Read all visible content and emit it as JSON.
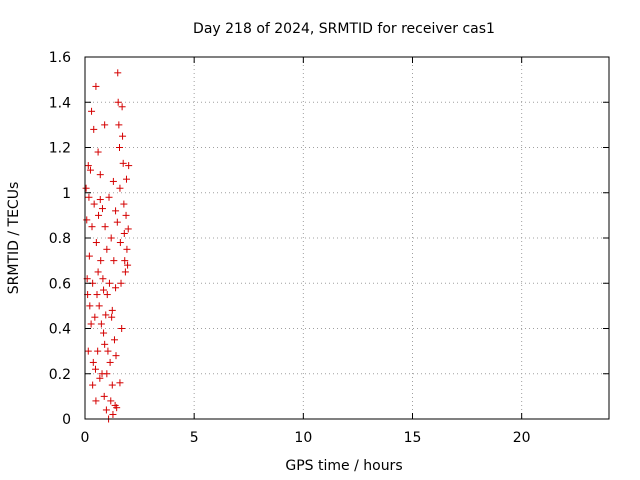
{
  "chart_data": {
    "type": "scatter",
    "title": "Day 218 of 2024, SRMTID for receiver cas1",
    "xlabel": "GPS time / hours",
    "ylabel": "SRMTID / TECUs",
    "xlim": [
      0,
      24
    ],
    "ylim": [
      0,
      1.6
    ],
    "x_ticks": [
      0,
      5,
      10,
      15,
      20
    ],
    "y_ticks": [
      0,
      0.2,
      0.4,
      0.6,
      0.8,
      1.0,
      1.2,
      1.4,
      1.6
    ],
    "x_tick_labels": [
      "0",
      "5",
      "10",
      "15",
      "20"
    ],
    "y_tick_labels": [
      "0",
      "0.2",
      "0.4",
      "0.6",
      "0.8",
      "1",
      "1.2",
      "1.4",
      "1.6"
    ],
    "grid": true,
    "marker": "+",
    "color": "#d40000",
    "series": [
      {
        "name": "cas1",
        "points": [
          [
            0.05,
            1.02
          ],
          [
            0.08,
            0.88
          ],
          [
            0.1,
            0.62
          ],
          [
            0.12,
            0.55
          ],
          [
            0.15,
            1.12
          ],
          [
            0.18,
            0.98
          ],
          [
            0.2,
            0.72
          ],
          [
            0.22,
            0.5
          ],
          [
            0.25,
            1.1
          ],
          [
            0.28,
            0.42
          ],
          [
            0.3,
            1.36
          ],
          [
            0.32,
            0.85
          ],
          [
            0.35,
            0.6
          ],
          [
            0.38,
            0.25
          ],
          [
            0.4,
            1.28
          ],
          [
            0.42,
            0.95
          ],
          [
            0.45,
            0.45
          ],
          [
            0.48,
            0.22
          ],
          [
            0.5,
            1.47
          ],
          [
            0.52,
            0.78
          ],
          [
            0.55,
            0.55
          ],
          [
            0.58,
            0.3
          ],
          [
            0.6,
            1.18
          ],
          [
            0.62,
            0.9
          ],
          [
            0.65,
            0.5
          ],
          [
            0.68,
            0.18
          ],
          [
            0.7,
            1.08
          ],
          [
            0.72,
            0.7
          ],
          [
            0.75,
            0.42
          ],
          [
            0.78,
            0.2
          ],
          [
            0.8,
            0.93
          ],
          [
            0.82,
            0.62
          ],
          [
            0.85,
            0.38
          ],
          [
            0.88,
            0.1
          ],
          [
            0.9,
            1.3
          ],
          [
            0.92,
            0.85
          ],
          [
            0.95,
            0.46
          ],
          [
            0.98,
            0.04
          ],
          [
            1.0,
            0.75
          ],
          [
            1.02,
            0.55
          ],
          [
            1.05,
            0.3
          ],
          [
            1.08,
            0.0
          ],
          [
            1.1,
            0.98
          ],
          [
            1.12,
            0.6
          ],
          [
            1.15,
            0.25
          ],
          [
            1.18,
            0.08
          ],
          [
            1.2,
            0.8
          ],
          [
            1.22,
            0.45
          ],
          [
            1.25,
            0.15
          ],
          [
            1.28,
            0.02
          ],
          [
            1.3,
            1.05
          ],
          [
            1.32,
            0.7
          ],
          [
            1.35,
            0.35
          ],
          [
            1.38,
            0.06
          ],
          [
            1.4,
            0.58
          ],
          [
            1.42,
            0.28
          ],
          [
            1.45,
            0.05
          ],
          [
            1.48,
            0.87
          ],
          [
            1.5,
            1.53
          ],
          [
            1.52,
            1.4
          ],
          [
            1.55,
            1.3
          ],
          [
            1.58,
            1.2
          ],
          [
            1.6,
            1.02
          ],
          [
            1.62,
            0.78
          ],
          [
            1.65,
            0.6
          ],
          [
            1.68,
            0.4
          ],
          [
            1.7,
            1.38
          ],
          [
            1.72,
            1.25
          ],
          [
            1.75,
            1.13
          ],
          [
            1.78,
            0.95
          ],
          [
            1.8,
            0.82
          ],
          [
            1.82,
            0.7
          ],
          [
            1.85,
            0.65
          ],
          [
            1.88,
            0.9
          ],
          [
            1.9,
            1.06
          ],
          [
            1.92,
            0.75
          ],
          [
            1.95,
            0.68
          ],
          [
            1.98,
            0.84
          ],
          [
            2.0,
            1.12
          ],
          [
            0.15,
            0.3
          ],
          [
            0.6,
            0.65
          ],
          [
            1.0,
            0.2
          ],
          [
            0.35,
            0.15
          ],
          [
            0.85,
            0.57
          ],
          [
            1.4,
            0.92
          ],
          [
            0.7,
            0.97
          ],
          [
            1.25,
            0.48
          ],
          [
            0.5,
            0.08
          ],
          [
            1.6,
            0.16
          ],
          [
            0.9,
            0.33
          ]
        ]
      }
    ]
  }
}
